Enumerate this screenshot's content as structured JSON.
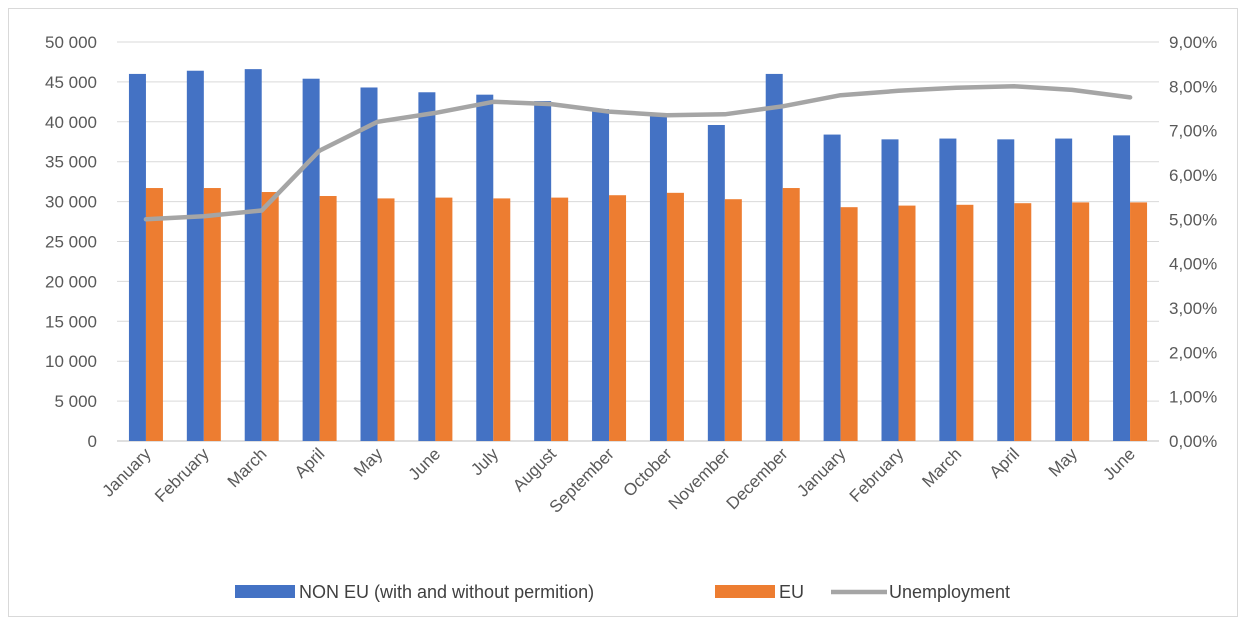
{
  "chart_data": {
    "type": "bar",
    "title": "",
    "categories": [
      "January",
      "February",
      "March",
      "April",
      "May",
      "June",
      "July",
      "August",
      "September",
      "October",
      "November",
      "December",
      "January",
      "February",
      "March",
      "April",
      "May",
      "June"
    ],
    "series": [
      {
        "name": "NON EU (with and without permition)",
        "type": "bar",
        "axis": "left",
        "color": "#4472C4",
        "values": [
          46000,
          46400,
          46600,
          45400,
          44300,
          43700,
          43400,
          42600,
          41600,
          41000,
          39600,
          46000,
          38400,
          37800,
          37900,
          37800,
          37900,
          38300
        ]
      },
      {
        "name": "EU",
        "type": "bar",
        "axis": "left",
        "color": "#ED7D31",
        "values": [
          31700,
          31700,
          31200,
          30700,
          30400,
          30500,
          30400,
          30500,
          30800,
          31100,
          30300,
          31700,
          29300,
          29500,
          29600,
          29800,
          29900,
          29900
        ]
      },
      {
        "name": "Unemployment",
        "type": "line",
        "axis": "right",
        "color": "#A5A5A5",
        "values": [
          5.0,
          5.07,
          5.2,
          6.55,
          7.2,
          7.4,
          7.65,
          7.6,
          7.43,
          7.35,
          7.37,
          7.55,
          7.8,
          7.9,
          7.97,
          8.0,
          7.92,
          7.75
        ]
      }
    ],
    "y_left": {
      "min": 0,
      "max": 50000,
      "ticks": [
        0,
        5000,
        10000,
        15000,
        20000,
        25000,
        30000,
        35000,
        40000,
        45000,
        50000
      ],
      "tick_labels": [
        "0",
        "5 000",
        "10 000",
        "15 000",
        "20 000",
        "25 000",
        "30 000",
        "35 000",
        "40 000",
        "45 000",
        "50 000"
      ]
    },
    "y_right": {
      "min": 0,
      "max": 9,
      "unit": "%",
      "ticks": [
        0,
        1,
        2,
        3,
        4,
        5,
        6,
        7,
        8,
        9
      ],
      "tick_labels": [
        "0,00%",
        "1,00%",
        "2,00%",
        "3,00%",
        "4,00%",
        "5,00%",
        "6,00%",
        "7,00%",
        "8,00%",
        "9,00%"
      ]
    },
    "grid": true,
    "legend_position": "bottom"
  }
}
